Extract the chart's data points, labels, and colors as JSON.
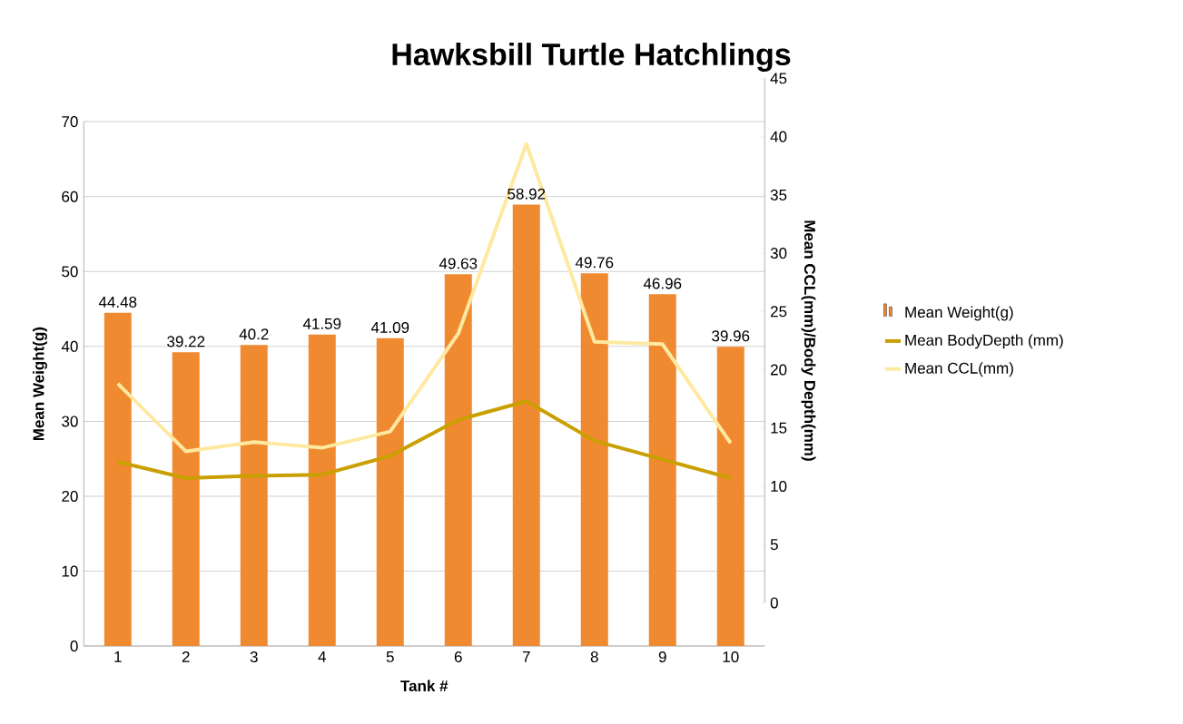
{
  "chart_data": {
    "type": "bar",
    "title": "Hawksbill Turtle Hatchlings",
    "xlabel": "Tank #",
    "ylabel": "Mean Weight(g)",
    "y2label": "Mean CCL(mm)/Body Depth(mm)",
    "categories": [
      "1",
      "2",
      "3",
      "4",
      "5",
      "6",
      "7",
      "8",
      "9",
      "10"
    ],
    "series": [
      {
        "name": "Mean Weight(g)",
        "color": "#f08a30",
        "values": [
          44.48,
          39.22,
          40.2,
          41.59,
          41.09,
          49.63,
          58.92,
          49.76,
          46.96,
          39.96
        ],
        "value_labels": [
          "44.48",
          "39.22",
          "40.2",
          "41.59",
          "41.09",
          "49.63",
          "58.92",
          "49.76",
          "46.96",
          "39.96"
        ]
      },
      {
        "name": "Mean BodyDepth (mm)",
        "type": "line",
        "axis": "y2",
        "color": "#c9a000",
        "values": [
          12.1,
          10.7,
          10.9,
          11.0,
          12.6,
          15.7,
          17.3,
          13.9,
          12.3,
          10.7
        ]
      },
      {
        "name": "Mean CCL(mm)",
        "type": "line",
        "axis": "y2",
        "color": "#ffe9a0",
        "values": [
          18.8,
          13.0,
          13.8,
          13.3,
          14.7,
          23.1,
          39.4,
          22.4,
          22.2,
          13.7
        ]
      }
    ],
    "ylim": [
      0,
      70
    ],
    "yticks": [
      0,
      10,
      20,
      30,
      40,
      50,
      60,
      70
    ],
    "y2lim": [
      0,
      45
    ],
    "y2ticks": [
      0,
      5,
      10,
      15,
      20,
      25,
      30,
      35,
      40,
      45
    ],
    "grid": "y",
    "legend": "right",
    "marker": "none",
    "line_style": "solid"
  }
}
